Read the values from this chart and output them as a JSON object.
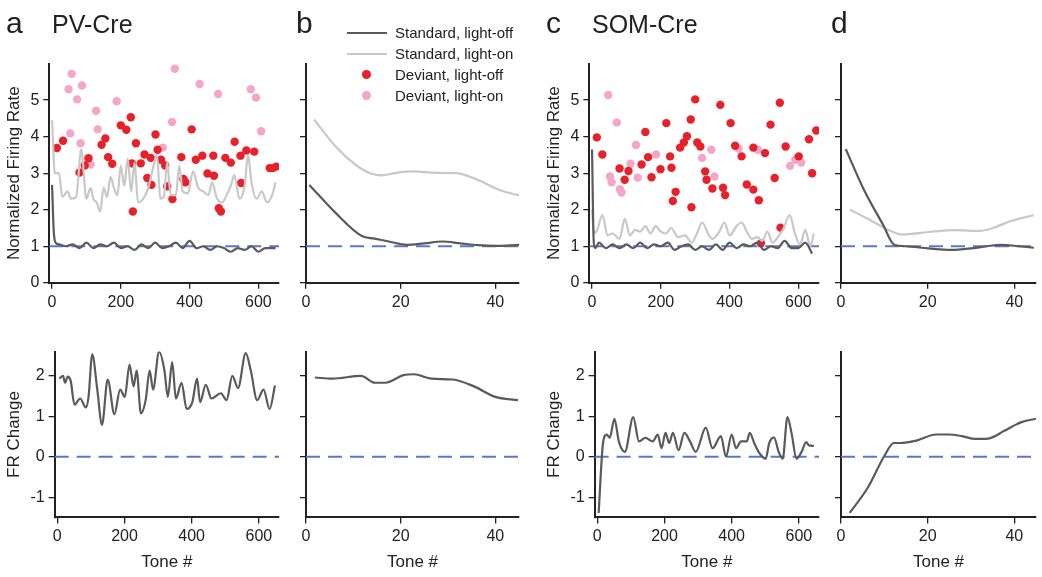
{
  "chart_data": [
    {
      "type": "line",
      "title": "PV-Cre",
      "annotations": [
        "a"
      ],
      "ylabel": "Normalized Firing Rate",
      "xlim": [
        -8,
        660
      ],
      "xticks": [
        0,
        200,
        400,
        600
      ],
      "ylim": [
        0,
        6
      ],
      "yticks": [
        0,
        1,
        2,
        3,
        4,
        5
      ],
      "legend": "top right",
      "ref_lines": [
        {
          "axis": "y",
          "value": 1,
          "color": "#5b78c8",
          "line_style": "dashed"
        }
      ],
      "series": [
        {
          "name": "Standard, light-off",
          "type": "line",
          "color": "#5a5a5a",
          "marker": "none",
          "x": [
            0,
            5,
            10,
            20,
            40,
            60,
            80,
            100,
            120,
            140,
            160,
            180,
            200,
            220,
            240,
            260,
            280,
            300,
            320,
            340,
            360,
            380,
            400,
            420,
            440,
            460,
            480,
            500,
            520,
            540,
            560,
            580,
            600,
            620,
            640,
            650
          ],
          "values": [
            2.68,
            1.4,
            1.1,
            1.05,
            1.0,
            1.05,
            0.95,
            1.1,
            0.95,
            1.05,
            1.0,
            1.1,
            0.95,
            1.0,
            0.9,
            1.05,
            0.95,
            1.1,
            0.95,
            1.0,
            1.1,
            0.95,
            1.15,
            0.95,
            1.0,
            0.9,
            1.0,
            0.95,
            0.85,
            0.95,
            0.9,
            1.0,
            0.85,
            0.95,
            0.95,
            0.95
          ]
        },
        {
          "name": "Standard, light-on",
          "type": "line",
          "color": "#c8c8c8",
          "marker": "none",
          "x": [
            0,
            8,
            20,
            30,
            45,
            55,
            70,
            85,
            100,
            112,
            120,
            130,
            140,
            150,
            160,
            170,
            180,
            190,
            200,
            210,
            220,
            230,
            240,
            250,
            265,
            280,
            295,
            305,
            315,
            325,
            335,
            345,
            360,
            370,
            380,
            395,
            410,
            425,
            440,
            455,
            465,
            480,
            495,
            510,
            520,
            530,
            545,
            560,
            570,
            580,
            595,
            610,
            625,
            640,
            650
          ],
          "values": [
            4.45,
            3.0,
            3.0,
            2.35,
            2.5,
            2.3,
            2.35,
            3.65,
            2.3,
            2.6,
            2.3,
            2.2,
            1.95,
            2.6,
            2.35,
            2.9,
            2.6,
            2.4,
            3.2,
            2.65,
            3.4,
            2.5,
            3.3,
            2.2,
            2.3,
            2.6,
            3.2,
            3.5,
            2.3,
            2.35,
            3.3,
            2.4,
            2.4,
            3.2,
            2.5,
            2.45,
            3.05,
            2.6,
            2.5,
            2.4,
            2.75,
            2.3,
            2.2,
            2.45,
            2.65,
            2.95,
            2.3,
            2.65,
            3.5,
            2.75,
            2.3,
            2.5,
            2.2,
            2.4,
            2.75
          ]
        },
        {
          "name": "Deviant, light-off",
          "type": "scatter",
          "color": "#e8202a",
          "marker": "circle",
          "x": [
            14,
            32,
            80,
            95,
            106,
            144,
            155,
            163,
            175,
            200,
            216,
            229,
            232,
            235,
            244,
            258,
            269,
            277,
            287,
            289,
            301,
            307,
            317,
            329,
            335,
            350,
            376,
            382,
            388,
            406,
            418,
            437,
            452,
            471,
            469,
            485,
            491,
            504,
            520,
            531,
            548,
            550,
            565,
            588,
            633,
            642,
            652
          ],
          "values": [
            3.69,
            3.89,
            3.02,
            3.21,
            3.41,
            3.78,
            3.95,
            3.44,
            3.26,
            4.31,
            4.19,
            4.53,
            3.27,
            1.95,
            3.82,
            3.27,
            3.51,
            2.87,
            3.42,
            2.68,
            4.06,
            3.64,
            3.37,
            3.21,
            2.64,
            2.29,
            3.44,
            2.84,
            2.75,
            4.2,
            3.37,
            3.48,
            2.99,
            2.93,
            3.48,
            2.04,
            1.95,
            3.42,
            3.29,
            3.86,
            3.48,
            2.73,
            3.62,
            3.59,
            3.14,
            3.14,
            3.18
          ]
        },
        {
          "name": "Deviant, light-on",
          "type": "scatter",
          "color": "#f4a6c9",
          "marker": "circle",
          "x": [
            53,
            48,
            57,
            73,
            87,
            83,
            112,
            128,
            133,
            188,
            322,
            349,
            357,
            429,
            483,
            578,
            593,
            608
          ],
          "values": [
            4.09,
            5.3,
            5.72,
            5.02,
            5.4,
            3.82,
            3.24,
            4.71,
            4.2,
            4.97,
            3.7,
            4.4,
            5.86,
            5.44,
            5.17,
            5.3,
            5.07,
            4.15
          ]
        }
      ]
    },
    {
      "type": "line",
      "annotations": [
        "b"
      ],
      "xlim": [
        0,
        45
      ],
      "xticks": [
        0,
        20,
        40
      ],
      "ylim": [
        0,
        6
      ],
      "yticks": [
        {
          "value": 0,
          "label": null
        },
        {
          "value": 1,
          "label": null
        },
        {
          "value": 2,
          "label": null
        },
        {
          "value": 3,
          "label": null
        },
        {
          "value": 4,
          "label": null
        },
        {
          "value": 5,
          "label": null
        }
      ],
      "tick_labels": "x",
      "ref_lines": [
        {
          "axis": "y",
          "value": 1,
          "color": "#5b78c8",
          "line_style": "dashed"
        }
      ],
      "series": [
        {
          "type": "line",
          "color": "#5a5a5a",
          "marker": "none",
          "x": [
            0.7,
            6.2,
            11.8,
            14.5,
            17.5,
            21.3,
            25,
            28.8,
            32.6,
            36.4,
            40.2,
            45
          ],
          "values": [
            2.68,
            1.92,
            1.28,
            1.21,
            1.13,
            1.04,
            1.08,
            1.13,
            1.08,
            1.03,
            1.01,
            1.04
          ]
        },
        {
          "type": "line",
          "color": "#c8c8c8",
          "marker": "none",
          "x": [
            1.7,
            6.2,
            10.7,
            13.7,
            16,
            19,
            22.8,
            27.3,
            31.8,
            36.4,
            40.9,
            45
          ],
          "values": [
            4.47,
            3.74,
            3.21,
            2.99,
            2.94,
            3.01,
            3.05,
            3.01,
            3.0,
            2.81,
            2.54,
            2.39
          ]
        }
      ]
    },
    {
      "type": "line",
      "title": "SOM-Cre",
      "annotations": [
        "c"
      ],
      "ylabel": "Normalized Firing Rate",
      "xlim": [
        -8,
        660
      ],
      "xticks": [
        0,
        200,
        400,
        600
      ],
      "ylim": [
        0,
        6
      ],
      "yticks": [
        0,
        1,
        2,
        3,
        4,
        5
      ],
      "ref_lines": [
        {
          "axis": "y",
          "value": 1,
          "color": "#5b78c8",
          "line_style": "dashed"
        }
      ],
      "series": [
        {
          "type": "line",
          "color": "#5a5a5a",
          "marker": "none",
          "x": [
            0,
            5,
            10,
            20,
            40,
            60,
            80,
            100,
            120,
            140,
            160,
            180,
            200,
            220,
            240,
            260,
            280,
            300,
            320,
            340,
            360,
            380,
            400,
            420,
            440,
            460,
            480,
            500,
            520,
            540,
            560,
            580,
            600,
            620,
            640
          ],
          "values": [
            3.65,
            1.1,
            0.95,
            1.1,
            0.95,
            1.05,
            0.95,
            1.05,
            0.95,
            1.1,
            0.95,
            1.05,
            1.0,
            1.1,
            0.9,
            1.0,
            1.05,
            0.9,
            1.0,
            0.9,
            1.05,
            0.9,
            1.1,
            0.95,
            1.05,
            1.0,
            1.1,
            0.9,
            1.0,
            0.95,
            1.15,
            0.95,
            0.95,
            1.1,
            0.8
          ]
        },
        {
          "type": "line",
          "color": "#c8c8c8",
          "marker": "none",
          "x": [
            0,
            5,
            15,
            30,
            45,
            60,
            80,
            95,
            110,
            125,
            140,
            155,
            170,
            185,
            200,
            215,
            230,
            250,
            270,
            290,
            305,
            320,
            340,
            350,
            370,
            385,
            400,
            420,
            435,
            450,
            465,
            480,
            495,
            510,
            525,
            540,
            555,
            575,
            590,
            605,
            620,
            635,
            645
          ],
          "values": [
            2.0,
            1.35,
            1.45,
            1.85,
            1.3,
            1.35,
            1.2,
            1.75,
            1.3,
            1.45,
            1.4,
            1.55,
            1.35,
            1.55,
            1.4,
            1.35,
            1.5,
            1.25,
            1.3,
            1.1,
            1.35,
            1.65,
            1.3,
            1.2,
            1.4,
            1.65,
            1.3,
            1.55,
            1.65,
            1.4,
            1.2,
            1.25,
            1.15,
            1.4,
            1.1,
            1.25,
            1.45,
            1.85,
            1.35,
            1.05,
            1.45,
            1.0,
            1.35
          ]
        },
        {
          "type": "scatter",
          "color": "#e8202a",
          "marker": "circle",
          "x": [
            14,
            30,
            80,
            95,
            106,
            144,
            155,
            163,
            173,
            199,
            216,
            227,
            231,
            235,
            243,
            256,
            267,
            276,
            287,
            289,
            300,
            306,
            315,
            329,
            333,
            350,
            373,
            381,
            387,
            403,
            416,
            435,
            450,
            469,
            469,
            485,
            491,
            503,
            519,
            531,
            546,
            548,
            563,
            601,
            631,
            640,
            652
          ],
          "values": [
            3.98,
            3.51,
            3.13,
            2.82,
            3.06,
            3.24,
            4.13,
            3.44,
            2.89,
            3.11,
            4.37,
            3.46,
            3.15,
            2.24,
            2.49,
            3.7,
            3.84,
            4.01,
            4.47,
            2.07,
            5.02,
            3.84,
            3.73,
            3.05,
            2.82,
            2.58,
            4.87,
            2.6,
            2.4,
            4.37,
            3.75,
            3.46,
            2.69,
            2.55,
            3.7,
            2.26,
            1.08,
            3.55,
            4.33,
            2.87,
            4.93,
            1.51,
            3.73,
            3.46,
            3.93,
            3.0,
            4.17
          ]
        },
        {
          "type": "scatter",
          "color": "#f4a6c9",
          "marker": "circle",
          "x": [
            47,
            52,
            57,
            72,
            81,
            86,
            112,
            128,
            133,
            186,
            320,
            347,
            356,
            426,
            482,
            576,
            591,
            608
          ],
          "values": [
            5.14,
            2.91,
            2.75,
            4.39,
            2.56,
            2.47,
            3.26,
            3.77,
            2.88,
            3.51,
            3.42,
            3.64,
            2.91,
            3.67,
            3.64,
            3.2,
            3.37,
            3.29
          ]
        }
      ]
    },
    {
      "type": "line",
      "annotations": [
        "d"
      ],
      "xlim": [
        0,
        45
      ],
      "xticks": [
        0,
        20,
        40
      ],
      "ylim": [
        0,
        6
      ],
      "yticks": [
        {
          "value": 0,
          "label": null
        },
        {
          "value": 1,
          "label": null
        },
        {
          "value": 2,
          "label": null
        },
        {
          "value": 3,
          "label": null
        },
        {
          "value": 4,
          "label": null
        },
        {
          "value": 5,
          "label": null
        }
      ],
      "tick_labels": "x",
      "ref_lines": [
        {
          "axis": "y",
          "value": 1,
          "color": "#5b78c8",
          "line_style": "dashed"
        }
      ],
      "series": [
        {
          "type": "line",
          "color": "#5a5a5a",
          "marker": "none",
          "x": [
            1.1,
            5.2,
            9.7,
            12.3,
            14.9,
            20.2,
            25.4,
            29.9,
            33.6,
            37,
            41.1,
            44.5
          ],
          "values": [
            3.66,
            2.57,
            1.59,
            1.04,
            1.0,
            0.94,
            0.9,
            0.94,
            1.0,
            1.04,
            1.0,
            0.96
          ]
        },
        {
          "type": "line",
          "color": "#c8c8c8",
          "marker": "none",
          "x": [
            2.1,
            6.7,
            11.2,
            14.2,
            20.2,
            26.2,
            32.1,
            35.1,
            38.9,
            44.5
          ],
          "values": [
            2.0,
            1.72,
            1.43,
            1.32,
            1.39,
            1.44,
            1.42,
            1.5,
            1.68,
            1.85
          ]
        }
      ]
    },
    {
      "type": "line",
      "xlabel": "Tone #",
      "ylabel": "FR Change",
      "xlim": [
        -8,
        660
      ],
      "xticks": [
        0,
        200,
        400,
        600
      ],
      "ylim": [
        -1.5,
        2.6
      ],
      "yticks": [
        -1,
        0,
        1,
        2
      ],
      "ref_lines": [
        {
          "axis": "y",
          "value": 0,
          "color": "#5b78c8",
          "line_style": "dashed"
        }
      ],
      "series": [
        {
          "type": "line",
          "color": "#5a5a5a",
          "marker": "none",
          "x": [
            6,
            17,
            23,
            31,
            40,
            51,
            68,
            85,
            93,
            104,
            119,
            133,
            150,
            170,
            187,
            201,
            215,
            227,
            236,
            249,
            263,
            275,
            285,
            303,
            319,
            329,
            342,
            353,
            370,
            385,
            402,
            416,
            425,
            442,
            459,
            487,
            504,
            521,
            538,
            561,
            576,
            595,
            614,
            632,
            648
          ],
          "values": [
            1.93,
            2.0,
            1.83,
            1.98,
            1.87,
            1.29,
            1.44,
            1.22,
            1.48,
            2.53,
            1.66,
            0.79,
            1.91,
            1.05,
            1.66,
            1.48,
            2.28,
            1.74,
            2.13,
            1.07,
            1.4,
            2.13,
            1.66,
            2.6,
            2.13,
            1.48,
            2.34,
            1.44,
            1.83,
            1.18,
            1.35,
            1.93,
            1.35,
            1.78,
            1.44,
            1.57,
            1.4,
            2.0,
            1.7,
            2.56,
            2.13,
            1.4,
            1.66,
            1.18,
            1.76
          ]
        }
      ]
    },
    {
      "type": "line",
      "xlabel": "Tone #",
      "xlim": [
        0,
        45
      ],
      "xticks": [
        0,
        20,
        40
      ],
      "ylim": [
        -1.5,
        2.6
      ],
      "yticks": [
        {
          "value": -1,
          "label": null
        },
        {
          "value": 0,
          "label": null
        },
        {
          "value": 1,
          "label": null
        },
        {
          "value": 2,
          "label": null
        }
      ],
      "tick_labels": "x",
      "ref_lines": [
        {
          "axis": "y",
          "value": 0,
          "color": "#5b78c8",
          "line_style": "dashed"
        }
      ],
      "series": [
        {
          "type": "line",
          "color": "#5a5a5a",
          "marker": "none",
          "x": [
            1.9,
            5.6,
            11.6,
            14.6,
            16.8,
            20.6,
            22.8,
            26.5,
            31,
            35.5,
            40,
            44.8
          ],
          "values": [
            1.96,
            1.93,
            2.0,
            1.83,
            1.83,
            2.02,
            2.04,
            1.93,
            1.91,
            1.74,
            1.48,
            1.4
          ]
        }
      ]
    },
    {
      "type": "line",
      "xlabel": "Tone #",
      "ylabel": "FR Change",
      "xlim": [
        -8,
        660
      ],
      "xticks": [
        0,
        200,
        400,
        600
      ],
      "ylim": [
        -1.5,
        2.6
      ],
      "yticks": [
        -1,
        0,
        1,
        2
      ],
      "ref_lines": [
        {
          "axis": "y",
          "value": 0,
          "color": "#5b78c8",
          "line_style": "dashed"
        }
      ],
      "series": [
        {
          "type": "line",
          "color": "#5a5a5a",
          "marker": "none",
          "x": [
            4,
            17,
            28,
            37,
            51,
            64,
            82,
            107,
            124,
            143,
            165,
            180,
            191,
            203,
            214,
            225,
            242,
            259,
            276,
            293,
            323,
            343,
            368,
            383,
            400,
            413,
            428,
            445,
            454,
            467,
            480,
            493,
            501,
            512,
            526,
            540,
            552,
            566,
            579,
            593,
            608,
            622,
            630,
            645
          ],
          "values": [
            -1.39,
            0.34,
            0.55,
            0.47,
            0.94,
            0.38,
            0.12,
            0.98,
            0.38,
            0.47,
            0.38,
            0.55,
            0.21,
            0.59,
            0.34,
            0.59,
            0.16,
            0.59,
            0.38,
            0.12,
            0.72,
            0.21,
            0.51,
            0.0,
            0.55,
            0.21,
            0.38,
            0.38,
            0.59,
            0.34,
            0.12,
            -0.01,
            -0.05,
            0.34,
            0.48,
            0.12,
            -0.05,
            0.98,
            0.55,
            -0.05,
            0.12,
            0.36,
            0.28,
            0.27
          ]
        }
      ]
    },
    {
      "type": "line",
      "xlabel": "Tone #",
      "xlim": [
        0,
        45
      ],
      "xticks": [
        0,
        20,
        40
      ],
      "ylim": [
        -1.5,
        2.6
      ],
      "yticks": [
        {
          "value": -1,
          "label": null
        },
        {
          "value": 0,
          "label": null
        },
        {
          "value": 1,
          "label": null
        },
        {
          "value": 2,
          "label": null
        }
      ],
      "tick_labels": "x",
      "ref_lines": [
        {
          "axis": "y",
          "value": 0,
          "color": "#5b78c8",
          "line_style": "dashed"
        }
      ],
      "series": [
        {
          "type": "line",
          "color": "#5a5a5a",
          "marker": "none",
          "x": [
            2,
            6.2,
            9.9,
            12.2,
            13.7,
            17.4,
            21.95,
            24.96,
            27.9,
            30.98,
            33.98,
            37.7,
            41.5,
            45
          ],
          "values": [
            -1.39,
            -0.76,
            0.0,
            0.34,
            0.34,
            0.4,
            0.55,
            0.55,
            0.51,
            0.44,
            0.45,
            0.64,
            0.85,
            0.94
          ]
        }
      ]
    }
  ]
}
